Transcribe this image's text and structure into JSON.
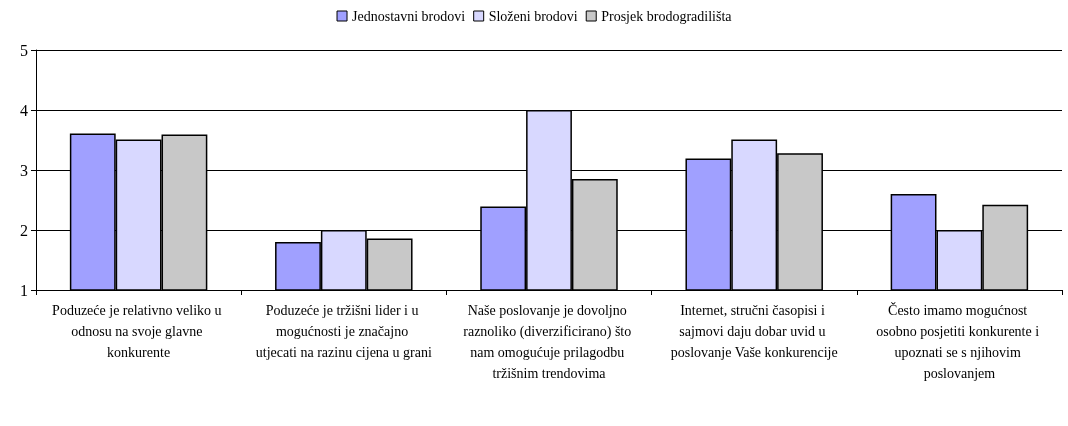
{
  "chart_data": {
    "type": "bar",
    "categories": [
      "Poduzeće je relativno veliko u odnosu na svoje glavne konkurente",
      "Poduzeće je tržišni lider i u mogućnosti je značajno utjecati na razinu cijena u grani",
      "Naše poslovanje je dovoljno raznoliko (diverzificirano) što nam omogućuje prilagodbu tržišnim trendovima",
      "Internet, stručni časopisi i sajmovi daju dobar uvid u poslovanje Vaše konkurencije",
      "Često imamo mogućnost osobno posjetiti konkurente i upoznati se s njihovim poslovanjem"
    ],
    "series": [
      {
        "name": "Jednostavni brodovi",
        "color": "#a0a0ff",
        "values": [
          3.61,
          1.8,
          2.39,
          3.19,
          2.6
        ]
      },
      {
        "name": "Složeni brodovi",
        "color": "#d8d8ff",
        "values": [
          3.51,
          2.0,
          4.0,
          3.51,
          2.0
        ]
      },
      {
        "name": "Prosjek brodogradilišta",
        "color": "#c8c8c8",
        "values": [
          3.59,
          1.86,
          2.85,
          3.28,
          2.42
        ]
      }
    ],
    "ylim": [
      1,
      5
    ],
    "yticks": [
      1,
      2,
      3,
      4,
      5
    ],
    "grid": "y",
    "legend": "top"
  }
}
